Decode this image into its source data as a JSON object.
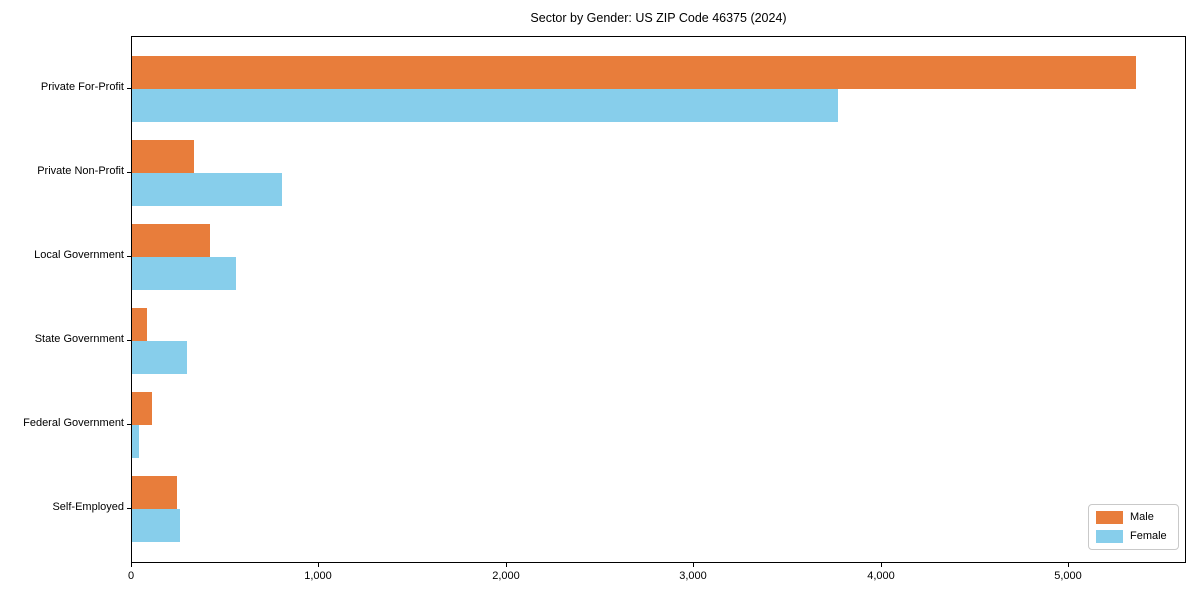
{
  "title": "Sector by Gender: US ZIP Code 46375 (2024)",
  "colors": {
    "male": "#e87d3b",
    "female": "#87ceeb",
    "frame": "#000000",
    "background": "#ffffff",
    "legend_border": "#c9c9c9"
  },
  "legend": {
    "position": "lower right",
    "items": [
      {
        "label": "Male",
        "color": "#e87d3b"
      },
      {
        "label": "Female",
        "color": "#87ceeb"
      }
    ]
  },
  "chart_data": {
    "type": "bar",
    "orientation": "horizontal",
    "title": "Sector by Gender: US ZIP Code 46375 (2024)",
    "categories": [
      "Private For-Profit",
      "Private Non-Profit",
      "Local Government",
      "State Government",
      "Federal Government",
      "Self-Employed"
    ],
    "series": [
      {
        "name": "Male",
        "color": "#e87d3b",
        "values": [
          5360,
          330,
          415,
          80,
          105,
          240
        ]
      },
      {
        "name": "Female",
        "color": "#87ceeb",
        "values": [
          3770,
          800,
          555,
          295,
          38,
          255
        ]
      }
    ],
    "xlabel": "",
    "ylabel": "",
    "xlim": [
      0,
      5630
    ],
    "x_ticks": [
      0,
      1000,
      2000,
      3000,
      4000,
      5000
    ],
    "x_tick_labels": [
      "0",
      "1,000",
      "2,000",
      "3,000",
      "4,000",
      "5,000"
    ],
    "grid": false,
    "legend_position": "lower right"
  }
}
